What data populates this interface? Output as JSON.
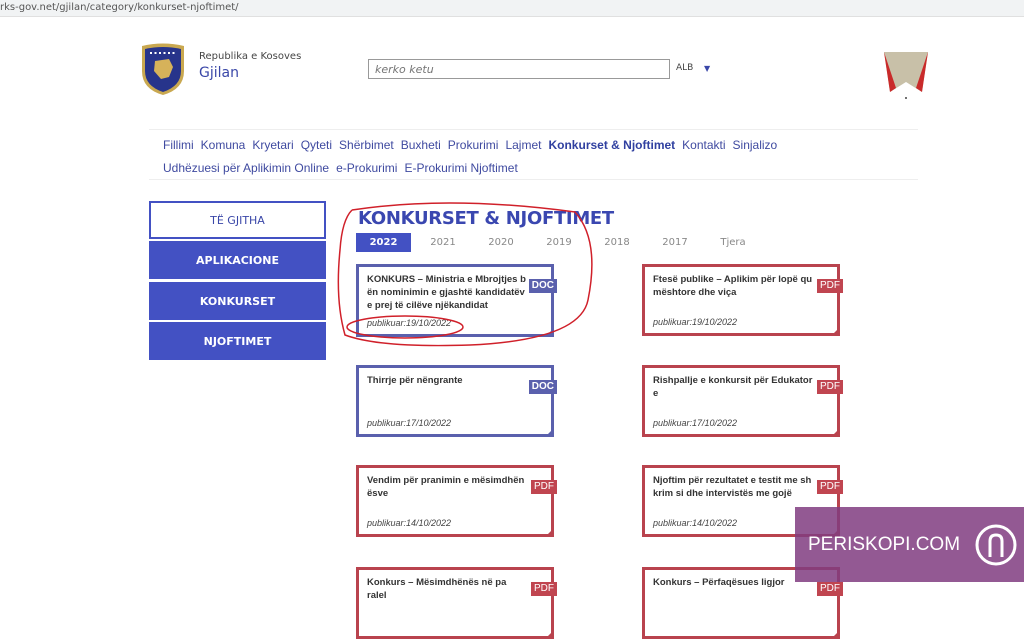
{
  "browser": {
    "url": "rks-gov.net/gjilan/category/konkurset-njoftimet/"
  },
  "header": {
    "republic": "Republika e Kosoves",
    "city": "Gjilan",
    "search_placeholder": "kerko ketu",
    "language": "ALB"
  },
  "nav": [
    "Fillimi",
    "Komuna",
    "Kryetari",
    "Qyteti",
    "Shërbimet",
    "Buxheti",
    "Prokurimi",
    "Lajmet",
    "Konkurset & Njoftimet",
    "Kontakti",
    "Sinjalizo",
    "Udhëzuesi për Aplikimin Online",
    "e-Prokurimi",
    "E-Prokurimi Njoftimet"
  ],
  "nav_active": "Konkurset & Njoftimet",
  "sidebar": [
    "TË GJITHA",
    "APLIKACIONE",
    "KONKURSET",
    "NJOFTIMET"
  ],
  "main": {
    "title": "KONKURSET & NJOFTIMET",
    "years": [
      "2022",
      "2021",
      "2020",
      "2019",
      "2018",
      "2017",
      "Tjera"
    ],
    "active_year": "2022",
    "cards": [
      {
        "title": "KONKURS – Ministria e Mbrojtjes bën nominimin e gjashtë kandidatëve prej të cilëve njëkandidat",
        "date": "publikuar:19/10/2022",
        "type": "DOC"
      },
      {
        "title": "Ftesë publike – Aplikim për lopë qumështore dhe viça",
        "date": "publikuar:19/10/2022",
        "type": "PDF"
      },
      {
        "title": "Thirrje për nëngrante",
        "date": "publikuar:17/10/2022",
        "type": "DOC"
      },
      {
        "title": "Rishpallje e konkursit për Edukatore",
        "date": "publikuar:17/10/2022",
        "type": "PDF"
      },
      {
        "title": "Vendim për pranimin e mësimdhënësve",
        "date": "publikuar:14/10/2022",
        "type": "PDF"
      },
      {
        "title": "Njoftim për rezultatet e testit me shkrim si dhe intervistës me gojë",
        "date": "publikuar:14/10/2022",
        "type": "PDF"
      },
      {
        "title": "Konkurs – Mësimdhënës në paralel",
        "date": "",
        "type": "PDF"
      },
      {
        "title": "Konkurs – Përfaqësues ligjor",
        "date": "",
        "type": "PDF"
      }
    ]
  },
  "watermark": "PERISKOPI.COM",
  "colors": {
    "blue": "#4351c3",
    "doc": "#5a60ad",
    "pdf": "#c04550",
    "annotation": "#d0202a"
  }
}
